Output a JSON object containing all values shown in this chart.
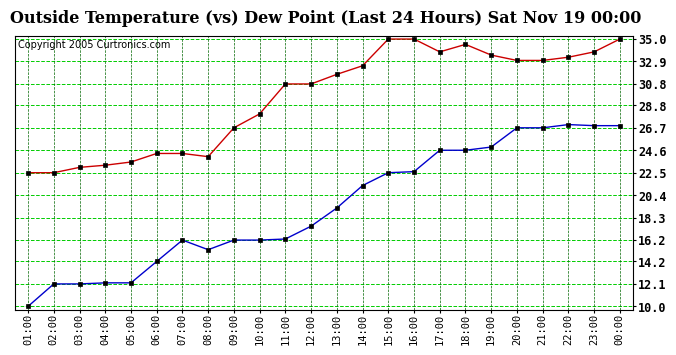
{
  "title": "Outside Temperature (vs) Dew Point (Last 24 Hours) Sat Nov 19 00:00",
  "copyright": "Copyright 2005 Curtronics.com",
  "x_labels": [
    "01:00",
    "02:00",
    "03:00",
    "04:00",
    "05:00",
    "06:00",
    "07:00",
    "08:00",
    "09:00",
    "10:00",
    "11:00",
    "12:00",
    "13:00",
    "14:00",
    "15:00",
    "16:00",
    "17:00",
    "18:00",
    "19:00",
    "20:00",
    "21:00",
    "22:00",
    "23:00",
    "00:00"
  ],
  "temp_data": [
    22.5,
    22.5,
    23.0,
    23.2,
    23.5,
    24.3,
    24.3,
    24.0,
    26.7,
    28.0,
    30.8,
    30.8,
    31.7,
    32.5,
    35.0,
    35.0,
    33.8,
    34.5,
    33.5,
    33.0,
    33.0,
    33.3,
    33.8,
    35.0
  ],
  "dew_data": [
    10.0,
    12.1,
    12.1,
    12.2,
    12.2,
    14.2,
    16.2,
    15.3,
    16.2,
    16.2,
    16.3,
    17.5,
    19.2,
    21.3,
    22.5,
    22.6,
    24.6,
    24.6,
    24.9,
    26.7,
    26.7,
    27.0,
    26.9,
    26.9
  ],
  "temp_color": "#cc0000",
  "dew_color": "#0000cc",
  "bg_color": "#ffffff",
  "grid_color_h": "#00cc00",
  "grid_color_v": "#006600",
  "y_min": 10.0,
  "y_max": 35.0,
  "y_ticks": [
    10.0,
    12.1,
    14.2,
    16.2,
    18.3,
    20.4,
    22.5,
    24.6,
    26.7,
    28.8,
    30.8,
    32.9,
    35.0
  ],
  "title_fontsize": 11.5,
  "axis_fontsize": 7.5,
  "copyright_fontsize": 7,
  "marker_size": 3
}
